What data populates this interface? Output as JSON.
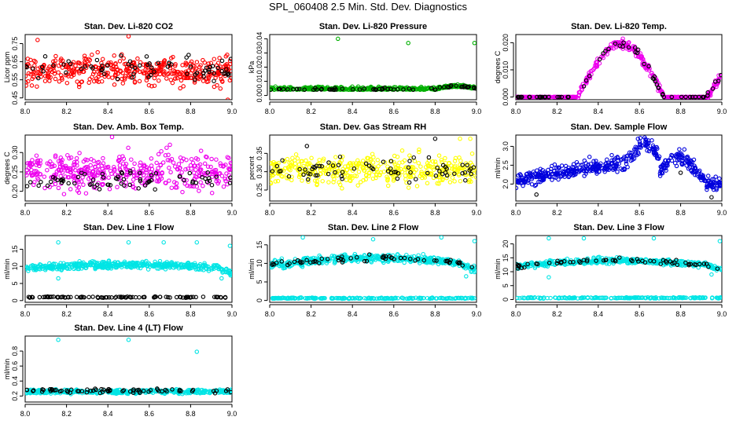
{
  "figure": {
    "title": "SPL_060408  2.5 Min. Std. Dev. Diagnostics"
  },
  "chart_data": [
    {
      "type": "scatter",
      "title": "Stan. Dev. Li-820 CO2",
      "ylabel": "Licor ppm",
      "xlim": [
        8.0,
        9.0
      ],
      "ylim": [
        0.44,
        0.8
      ],
      "xticks": [
        "8.0",
        "8.2",
        "8.4",
        "8.6",
        "8.8",
        "9.0"
      ],
      "yticks": [
        "0.45",
        "0.55",
        "0.65",
        "0.75"
      ],
      "series": [
        {
          "name": "stddev",
          "color": "#ff0000",
          "pattern": "noise",
          "count": 420,
          "center": 0.6,
          "spread": 0.07,
          "outliers": [
            [
              8.06,
              0.77
            ],
            [
              8.5,
              0.79
            ],
            [
              8.98,
              0.44
            ]
          ]
        },
        {
          "name": "black",
          "color": "#000000",
          "pattern": "noise",
          "count": 70,
          "center": 0.61,
          "spread": 0.06
        }
      ]
    },
    {
      "type": "scatter",
      "title": "Stan. Dev. Li-820 Pressure",
      "ylabel": "kPa",
      "xlim": [
        8.0,
        9.0
      ],
      "ylim": [
        -0.003,
        0.043
      ],
      "xticks": [
        "8.0",
        "8.2",
        "8.4",
        "8.6",
        "8.8",
        "9.0"
      ],
      "yticks": [
        "0.00",
        "0.01",
        "0.02",
        "0.03",
        "0.04"
      ],
      "series": [
        {
          "name": "stddev",
          "color": "#00b000",
          "pattern": "pressure",
          "count": 420,
          "spread": 0.0015,
          "outliers": [
            [
              8.33,
              0.04
            ],
            [
              8.67,
              0.037
            ],
            [
              8.99,
              0.037
            ]
          ]
        },
        {
          "name": "black",
          "color": "#000000",
          "pattern": "pressure",
          "count": 60,
          "spread": 0.0012
        }
      ]
    },
    {
      "type": "scatter",
      "title": "Stan. Dev. Li-820 Temp.",
      "ylabel": "degrees C",
      "xlim": [
        8.0,
        9.0
      ],
      "ylim": [
        -0.001,
        0.023
      ],
      "xticks": [
        "8.0",
        "8.2",
        "8.4",
        "8.6",
        "8.8",
        "9.0"
      ],
      "yticks": [
        "0.000",
        "0.010",
        "0.020"
      ],
      "series": [
        {
          "name": "stddev",
          "color": "#ee00ee",
          "pattern": "temp",
          "count": 420,
          "spread": 0.0008
        },
        {
          "name": "black",
          "color": "#000000",
          "pattern": "temp",
          "count": 70,
          "spread": 0.0008
        }
      ]
    },
    {
      "type": "scatter",
      "title": "Stan. Dev. Amb. Box Temp.",
      "ylabel": "degrees C",
      "xlim": [
        8.0,
        9.0
      ],
      "ylim": [
        0.175,
        0.345
      ],
      "xticks": [
        "8.0",
        "8.2",
        "8.4",
        "8.6",
        "8.8",
        "9.0"
      ],
      "yticks": [
        "0.20",
        "0.25",
        "0.30"
      ],
      "series": [
        {
          "name": "stddev",
          "color": "#ee00ee",
          "pattern": "noise",
          "count": 420,
          "center": 0.25,
          "spread": 0.04,
          "outliers": [
            [
              8.42,
              0.34
            ],
            [
              8.7,
              0.32
            ]
          ]
        },
        {
          "name": "black",
          "color": "#000000",
          "pattern": "noise",
          "count": 70,
          "center": 0.23,
          "spread": 0.02
        }
      ]
    },
    {
      "type": "scatter",
      "title": "Stan. Dev. Gas Stream RH",
      "ylabel": "percent",
      "xlim": [
        8.0,
        9.0
      ],
      "ylim": [
        0.22,
        0.4
      ],
      "xticks": [
        "8.0",
        "8.2",
        "8.4",
        "8.6",
        "8.8",
        "9.0"
      ],
      "yticks": [
        "0.25",
        "0.30",
        "0.35"
      ],
      "series": [
        {
          "name": "stddev",
          "color": "#ffff00",
          "pattern": "noise",
          "count": 420,
          "center": 0.305,
          "spread": 0.035,
          "outliers": [
            [
              8.92,
              0.39
            ],
            [
              8.97,
              0.39
            ]
          ]
        },
        {
          "name": "black",
          "color": "#000000",
          "pattern": "noise",
          "count": 70,
          "center": 0.305,
          "spread": 0.03,
          "outliers": [
            [
              8.18,
              0.37
            ],
            [
              8.8,
              0.39
            ]
          ]
        }
      ]
    },
    {
      "type": "scatter",
      "title": "Stan. Dev. Sample Flow",
      "ylabel": "ml/min",
      "xlim": [
        8.0,
        9.0
      ],
      "ylim": [
        1.55,
        3.3
      ],
      "xticks": [
        "8.0",
        "8.2",
        "8.4",
        "8.6",
        "8.8",
        "9.0"
      ],
      "yticks": [
        "2.0",
        "2.5",
        "3.0"
      ],
      "series": [
        {
          "name": "stddev",
          "color": "#0000dd",
          "pattern": "sampleflow",
          "count": 500,
          "spread": 0.1
        },
        {
          "name": "black",
          "color": "#000000",
          "pattern": "sampleflow",
          "count": 0,
          "spread": 0.1,
          "outliers": [
            [
              8.1,
              1.72
            ],
            [
              8.95,
              1.65
            ],
            [
              8.8,
              2.3
            ]
          ]
        }
      ]
    },
    {
      "type": "scatter",
      "title": "Stan. Dev. Line 1 Flow",
      "ylabel": "ml/min",
      "xlim": [
        8.0,
        9.0
      ],
      "ylim": [
        -0.5,
        19.0
      ],
      "xticks": [
        "8.0",
        "8.2",
        "8.4",
        "8.6",
        "8.8",
        "9.0"
      ],
      "yticks": [
        "0",
        "5",
        "10",
        "15"
      ],
      "series": [
        {
          "name": "stddev",
          "color": "#00e5e5",
          "pattern": "arch",
          "count": 450,
          "center": 9.5,
          "peak": 10.5,
          "spread": 0.5,
          "outliers": [
            [
              8.16,
              17
            ],
            [
              8.5,
              17
            ],
            [
              8.67,
              17
            ],
            [
              8.83,
              17
            ],
            [
              8.99,
              16
            ],
            [
              8.16,
              6.5
            ],
            [
              8.95,
              6.5
            ]
          ]
        },
        {
          "name": "black",
          "color": "#000000",
          "pattern": "flat",
          "count": 100,
          "center": 1.0,
          "spread": 0.1
        }
      ]
    },
    {
      "type": "scatter",
      "title": "Stan. Dev. Line 2 Flow",
      "ylabel": "ml/min",
      "xlim": [
        8.0,
        9.0
      ],
      "ylim": [
        -0.5,
        17.5
      ],
      "xticks": [
        "8.0",
        "8.2",
        "8.4",
        "8.6",
        "8.8",
        "9.0"
      ],
      "yticks": [
        "0",
        "5",
        "10",
        "15"
      ],
      "series": [
        {
          "name": "stddev",
          "color": "#00e5e5",
          "pattern": "arch",
          "count": 450,
          "center": 9.5,
          "peak": 11.5,
          "spread": 0.5,
          "outliers": [
            [
              8.16,
              17
            ],
            [
              8.5,
              16.5
            ],
            [
              8.83,
              17
            ],
            [
              8.99,
              16
            ],
            [
              8.95,
              6.5
            ]
          ]
        },
        {
          "name": "line2",
          "color": "#00e5e5",
          "pattern": "flat",
          "count": 200,
          "center": 0.6,
          "spread": 0.08
        },
        {
          "name": "black",
          "color": "#000000",
          "pattern": "arch",
          "count": 60,
          "center": 9.5,
          "peak": 11.5,
          "spread": 0.4
        }
      ]
    },
    {
      "type": "scatter",
      "title": "Stan. Dev. Line 3 Flow",
      "ylabel": "ml/min",
      "xlim": [
        8.0,
        9.0
      ],
      "ylim": [
        -1.0,
        23.0
      ],
      "xticks": [
        "8.0",
        "8.2",
        "8.4",
        "8.6",
        "8.8",
        "9.0"
      ],
      "yticks": [
        "0",
        "5",
        "10",
        "15",
        "20"
      ],
      "series": [
        {
          "name": "stddev",
          "color": "#00e5e5",
          "pattern": "arch",
          "count": 450,
          "center": 12.0,
          "peak": 14.0,
          "spread": 0.5,
          "outliers": [
            [
              8.16,
              22
            ],
            [
              8.33,
              22
            ],
            [
              8.67,
              22
            ],
            [
              8.99,
              21
            ],
            [
              8.16,
              8
            ],
            [
              8.95,
              9
            ]
          ]
        },
        {
          "name": "line3",
          "color": "#00e5e5",
          "pattern": "flat",
          "count": 200,
          "center": 0.6,
          "spread": 0.1
        },
        {
          "name": "black",
          "color": "#000000",
          "pattern": "arch",
          "count": 60,
          "center": 12.0,
          "peak": 14.0,
          "spread": 0.4
        }
      ]
    },
    {
      "type": "scatter",
      "title": "Stan. Dev. Line 4 (LT) Flow",
      "ylabel": "ml/min",
      "xlim": [
        8.0,
        9.0
      ],
      "ylim": [
        0.12,
        1.0
      ],
      "xticks": [
        "8.0",
        "8.2",
        "8.4",
        "8.6",
        "8.8",
        "9.0"
      ],
      "yticks": [
        "0.2",
        "0.4",
        "0.6",
        "0.8"
      ],
      "series": [
        {
          "name": "stddev",
          "color": "#00e5e5",
          "pattern": "noise",
          "count": 420,
          "center": 0.26,
          "spread": 0.025,
          "outliers": [
            [
              8.16,
              0.95
            ],
            [
              8.5,
              0.95
            ],
            [
              8.83,
              0.79
            ]
          ]
        },
        {
          "name": "black",
          "color": "#000000",
          "pattern": "noise",
          "count": 70,
          "center": 0.27,
          "spread": 0.025
        }
      ]
    }
  ]
}
